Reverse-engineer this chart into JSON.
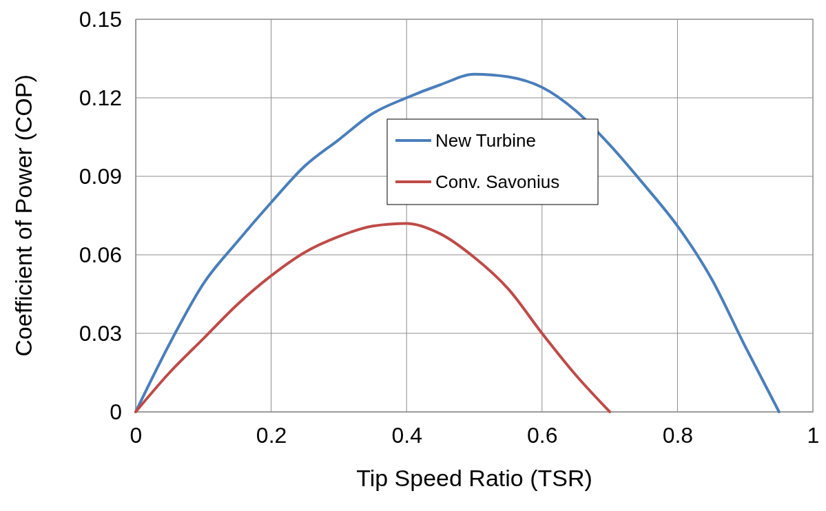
{
  "chart_data": {
    "type": "line",
    "xlabel": "Tip Speed Ratio (TSR)",
    "ylabel": "Coefficient of Power (COP)",
    "xlim": [
      0,
      1
    ],
    "xticks": [
      0,
      0.2,
      0.4,
      0.6,
      0.8,
      1
    ],
    "ylim": [
      0,
      0.15
    ],
    "yticks": [
      0,
      0.03,
      0.06,
      0.09,
      0.12,
      0.15
    ],
    "grid": true,
    "legend": "top",
    "marker": "none",
    "line_style": "solid",
    "series": [
      {
        "name": "New Turbine",
        "color": "#4a7ebb",
        "x": [
          0,
          0.05,
          0.1,
          0.15,
          0.2,
          0.25,
          0.3,
          0.35,
          0.4,
          0.45,
          0.5,
          0.55,
          0.6,
          0.65,
          0.7,
          0.75,
          0.8,
          0.85,
          0.9,
          0.95
        ],
        "values": [
          0,
          0.026,
          0.049,
          0.065,
          0.08,
          0.094,
          0.104,
          0.114,
          0.12,
          0.125,
          0.129,
          0.128,
          0.124,
          0.115,
          0.102,
          0.087,
          0.071,
          0.051,
          0.025,
          0
        ]
      },
      {
        "name": "Conv. Savonius",
        "color": "#be4b48",
        "x": [
          0,
          0.05,
          0.1,
          0.15,
          0.2,
          0.25,
          0.3,
          0.35,
          0.4,
          0.45,
          0.5,
          0.55,
          0.6,
          0.65,
          0.7
        ],
        "values": [
          0,
          0.015,
          0.028,
          0.041,
          0.052,
          0.061,
          0.067,
          0.071,
          0.072,
          0.068,
          0.059,
          0.047,
          0.03,
          0.014,
          0
        ]
      }
    ]
  }
}
